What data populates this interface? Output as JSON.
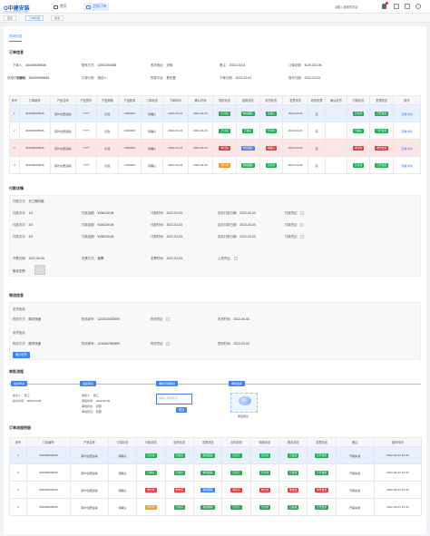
{
  "app": {
    "logo": "O中建安装",
    "logo_sub": "CHINA CONSTRUCTION",
    "nav": [
      "首页",
      "全部订单"
    ],
    "user": "请输入搜索的内容"
  },
  "tabs": [
    "首页",
    "订单管理",
    "物流"
  ],
  "panel_tab": "物流信息",
  "order": {
    "title": "订单信息",
    "fields": [
      {
        "label": "下单人:",
        "value": "364006065836"
      },
      {
        "label": "联系方式:",
        "value": "13902003836"
      },
      {
        "label": "收货地址:",
        "value": "天街"
      },
      {
        "label": "备注:",
        "value": "2022-03-03"
      },
      {
        "label": "订单总额:",
        "value": "¥129,302.06"
      },
      {
        "label": "订单编号:",
        "value": "364006065836"
      },
      {
        "label": "订单分类:",
        "value": "测试人"
      },
      {
        "label": "所属平台:",
        "value": "新天堂"
      },
      {
        "label": "下单日期:",
        "value": "2022-03-03"
      },
      {
        "label": "操作日期:",
        "value": "2022-03-03"
      },
      {
        "label": "状态:",
        "value": "已确认"
      }
    ]
  },
  "t1": {
    "headers": [
      "序号",
      "订单编号",
      "产品名称",
      "产品型号",
      "产品规格",
      "产品数量",
      "订单状态",
      "下单时间",
      "确认时间",
      "物流状态",
      "结算状态",
      "收货状态",
      "发票状态",
      "收到发票",
      "确认收货",
      "付款状态",
      "发票状态",
      "操作"
    ],
    "rows": [
      {
        "cells": [
          "1",
          "364006065836",
          "茶叶化肥运输",
          "????",
          "红色",
          "1000000",
          "待确认",
          "2022-04-03",
          "2022-04-03",
          "",
          "",
          "",
          "2022-04-03",
          "完",
          "",
          "",
          "",
          ""
        ],
        "badges": {
          "9": [
            "已付款",
            "g"
          ],
          "10": [
            "物流跟踪",
            "g"
          ],
          "11": [
            "已确认",
            "g"
          ],
          "15": [
            "已付款",
            "g"
          ],
          "16": [
            "已开发票",
            "g"
          ]
        },
        "op": "查看详情"
      },
      {
        "cells": [
          "2",
          "364006065836",
          "茶叶化肥运输",
          "????",
          "红色",
          "1000000",
          "待确认",
          "2022-04-03",
          "2022-04-03",
          "",
          "",
          "",
          "2022-04-03",
          "完",
          "",
          "",
          "",
          ""
        ],
        "badges": {
          "9": [
            "已付款",
            "g"
          ],
          "10": [
            "已确认",
            "g"
          ],
          "11": [
            "已付款",
            "g"
          ],
          "15": [
            "已确认",
            "g"
          ],
          "16": [
            "已开发票",
            "g"
          ]
        },
        "op": "查看详情"
      },
      {
        "cells": [
          "3",
          "364006065836",
          "茶叶化肥运输",
          "????",
          "红色",
          "1000000",
          "待确认",
          "2022-04-03",
          "2022-04-03",
          "",
          "",
          "",
          "2022-04-03",
          "完",
          "",
          "",
          "",
          ""
        ],
        "badges": {
          "9": [
            "未付款",
            "r"
          ],
          "10": [
            "物流跟踪",
            "b"
          ],
          "11": [
            "未确认",
            "r"
          ],
          "15": [
            "未付款",
            "r"
          ],
          "16": [
            "未开发票",
            "r"
          ]
        },
        "op": "查看详情"
      },
      {
        "cells": [
          "4",
          "364006065836",
          "茶叶化肥运输",
          "????",
          "红色",
          "1000000",
          "待确认",
          "2022-04-03",
          "2022-04-03",
          "",
          "",
          "",
          "2022-04-03",
          "完",
          "",
          "",
          "",
          ""
        ],
        "badges": {
          "9": [
            "待付款",
            "o"
          ],
          "10": [
            "物流跟踪",
            "g"
          ],
          "11": [
            "已付款",
            "g"
          ],
          "15": [
            "已付款",
            "g"
          ],
          "16": [
            "已开发票",
            "g"
          ]
        },
        "op": "查看详情"
      }
    ]
  },
  "pay": {
    "title": "付款详情",
    "method_label": "付款方式:",
    "method": "分三期付款",
    "rows": [
      [
        "付款次次:",
        "1/3",
        "付款金额:",
        "¥156230.06",
        "付款时间:",
        "2022-03-03",
        "实际付款日期:",
        "2022-03-03",
        "付款凭证"
      ],
      [
        "付款次次:",
        "2/3",
        "付款金额:",
        "¥156230.06",
        "付款时间:",
        "2022-03-03",
        "实际付款日期:",
        "2022-03-03",
        "付款凭证"
      ],
      [
        "付款次次:",
        "3/3",
        "付款金额:",
        "¥156230.06",
        "付款时间:",
        "2022-03-03",
        "实际付款日期:",
        "2022-03-03",
        "付款凭证"
      ]
    ],
    "invoice": [
      "开票日期:",
      "2022-06-06",
      "发票方式:",
      "差票",
      "发票时间:",
      "2022-03-03",
      "上传凭证:"
    ],
    "img_label": "备案发票:"
  },
  "logi": {
    "title": "物流信息",
    "g1_title": "发货信息:",
    "g1": [
      "物流方式:",
      "顺丰快递",
      "物流单号:",
      "1203020000909",
      "物流凭证",
      "收货时间:",
      "2022-06-06"
    ],
    "g2_title": "收货信息:",
    "g2": [
      "物流方式:",
      "顺丰快递",
      "物流单号:",
      "1234567890909",
      "物流凭证",
      "签收时间:",
      "2022-03-03"
    ],
    "btn": "确认收货"
  },
  "flow": {
    "title": "审批流程",
    "nodes": [
      "提交申请",
      "发起审批",
      "审核管理审批",
      "审核结束"
    ],
    "n1": [
      "提交人:",
      "张三",
      "提交时间:",
      "2022-04-03"
    ],
    "n2": [
      "审批人:",
      "张三",
      "审批时间:",
      "2022-06-06",
      "审批状态:",
      "同意",
      "审批意见:",
      "同意"
    ],
    "ta": "请输入审批意见",
    "btn": "提交",
    "earth": "审批通过"
  },
  "t2": {
    "title": "订单流程明细",
    "headers": [
      "序号",
      "订单编号",
      "产品名称",
      "订单状态",
      "付款状态",
      "收货状态",
      "发票状态",
      "合同状态",
      "收款状态",
      "物流状态",
      "发票状态",
      "备注",
      "操作时间"
    ],
    "rows": [
      {
        "c": [
          "1",
          "364006065836",
          "茶叶化肥运输",
          "待确认",
          "",
          "",
          "",
          "",
          "",
          "",
          "",
          "开票失败",
          "2022-04-03 12:30"
        ],
        "b": {
          "4": [
            "已付款",
            "g"
          ],
          "5": [
            "已收货",
            "g"
          ],
          "6": [
            "物流跟踪",
            "g"
          ],
          "7": [
            "已签订",
            "g"
          ],
          "8": [
            "已付款",
            "g"
          ],
          "9": [
            "已发货",
            "g"
          ],
          "10": [
            "已开发票",
            "g"
          ]
        }
      },
      {
        "c": [
          "2",
          "364006065836",
          "茶叶化肥运输",
          "待确认",
          "",
          "",
          "",
          "",
          "",
          "",
          "",
          "开票失败",
          "2022-04-03 12:30"
        ],
        "b": {
          "4": [
            "已确认",
            "g"
          ],
          "5": [
            "已收货",
            "g"
          ],
          "6": [
            "物流跟踪",
            "g"
          ],
          "7": [
            "已签订",
            "g"
          ],
          "8": [
            "已付款",
            "g"
          ],
          "9": [
            "已发货",
            "g"
          ],
          "10": [
            "已开发票",
            "g"
          ]
        }
      },
      {
        "c": [
          "3",
          "364006065836",
          "茶叶化肥运输",
          "待确认",
          "",
          "",
          "",
          "",
          "",
          "",
          "",
          "开票失败",
          "2022-04-03 12:30"
        ],
        "b": {
          "4": [
            "未付款",
            "r"
          ],
          "5": [
            "未收货",
            "r"
          ],
          "6": [
            "物流跟踪",
            "b"
          ],
          "7": [
            "未签订",
            "r"
          ],
          "8": [
            "未付款",
            "r"
          ],
          "9": [
            "未发货",
            "r"
          ],
          "10": [
            "未开发票",
            "r"
          ]
        }
      },
      {
        "c": [
          "4",
          "364006065836",
          "茶叶化肥运输",
          "待确认",
          "",
          "",
          "",
          "",
          "",
          "",
          "",
          "开票失败",
          "2022-04-03 12:30"
        ],
        "b": {
          "4": [
            "待付款",
            "o"
          ],
          "5": [
            "已收货",
            "g"
          ],
          "6": [
            "物流跟踪",
            "g"
          ],
          "7": [
            "已签订",
            "g"
          ],
          "8": [
            "已付款",
            "g"
          ],
          "9": [
            "已发货",
            "g"
          ],
          "10": [
            "已开发票",
            "g"
          ]
        }
      }
    ]
  },
  "colors": {
    "primary": "#3c83f5",
    "success": "#1fae4f",
    "danger": "#e33d3d",
    "warning": "#f59a23",
    "highlight": "#e7f0fc",
    "danger_row": "#fde5e5"
  }
}
